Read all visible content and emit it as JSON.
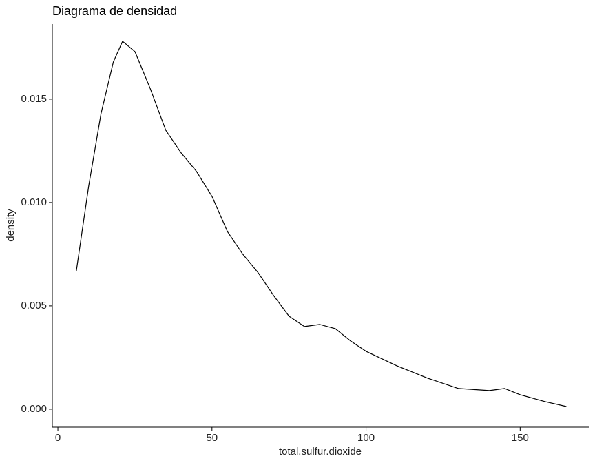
{
  "chart_data": {
    "type": "line",
    "title": "Diagrama de densidad",
    "x_label": "total.sulfur.dioxide",
    "y_label": "density",
    "x": [
      6,
      10,
      14,
      18,
      21,
      25,
      30,
      35,
      40,
      45,
      50,
      55,
      60,
      65,
      70,
      75,
      80,
      85,
      90,
      95,
      100,
      110,
      120,
      130,
      140,
      145,
      150,
      158,
      165
    ],
    "series": [
      {
        "name": "density",
        "color": "#000000",
        "values": [
          0.0067,
          0.0108,
          0.0143,
          0.0168,
          0.0178,
          0.0173,
          0.0155,
          0.0135,
          0.0124,
          0.0115,
          0.0103,
          0.0086,
          0.0075,
          0.0066,
          0.0055,
          0.0045,
          0.004,
          0.0041,
          0.0039,
          0.0033,
          0.0028,
          0.0021,
          0.0015,
          0.001,
          0.0009,
          0.001,
          0.0007,
          0.00037,
          0.00013
        ]
      }
    ],
    "xlim": [
      -1.8,
      172.5
    ],
    "ylim": [
      -0.00087,
      0.01863
    ],
    "xticks": [
      0,
      50,
      100,
      150
    ],
    "yticks": [
      {
        "value": 0,
        "label": "0.000"
      },
      {
        "value": 0.005,
        "label": "0.005"
      },
      {
        "value": 0.01,
        "label": "0.010"
      },
      {
        "value": 0.015,
        "label": "0.015"
      }
    ],
    "grid": false
  }
}
